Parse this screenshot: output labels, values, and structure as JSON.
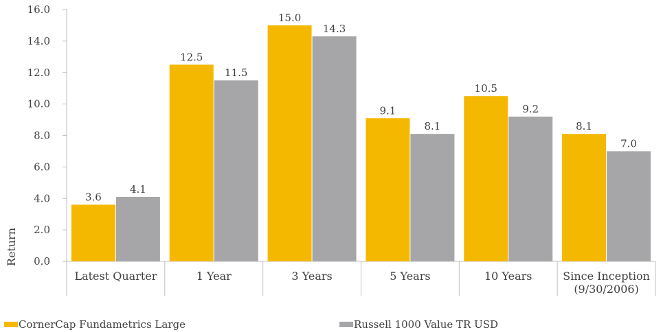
{
  "chart_data": {
    "type": "bar",
    "categories": [
      [
        "Latest Quarter"
      ],
      [
        "1 Year"
      ],
      [
        "3 Years"
      ],
      [
        "5 Years"
      ],
      [
        "10 Years"
      ],
      [
        "Since Inception",
        "(9/30/2006)"
      ]
    ],
    "series": [
      {
        "name": "CornerCap Fundametrics Large",
        "color": "#f5b800",
        "values": [
          3.6,
          12.5,
          15.0,
          9.1,
          10.5,
          8.1
        ],
        "labels": [
          "3.6",
          "12.5",
          "15.0",
          "9.1",
          "10.5",
          "8.1"
        ]
      },
      {
        "name": "Russell 1000 Value TR USD",
        "color": "#a6a6a8",
        "values": [
          4.1,
          11.5,
          14.3,
          8.1,
          9.2,
          7.0
        ],
        "labels": [
          "4.1",
          "11.5",
          "14.3",
          "8.1",
          "9.2",
          "7.0"
        ]
      }
    ],
    "title": "",
    "xlabel": "",
    "ylabel": "Return",
    "ylim": [
      0,
      16
    ],
    "yticks": [
      "0.0",
      "2.0",
      "4.0",
      "6.0",
      "8.0",
      "10.0",
      "12.0",
      "14.0",
      "16.0"
    ],
    "grid": false,
    "legend": "bottom"
  }
}
